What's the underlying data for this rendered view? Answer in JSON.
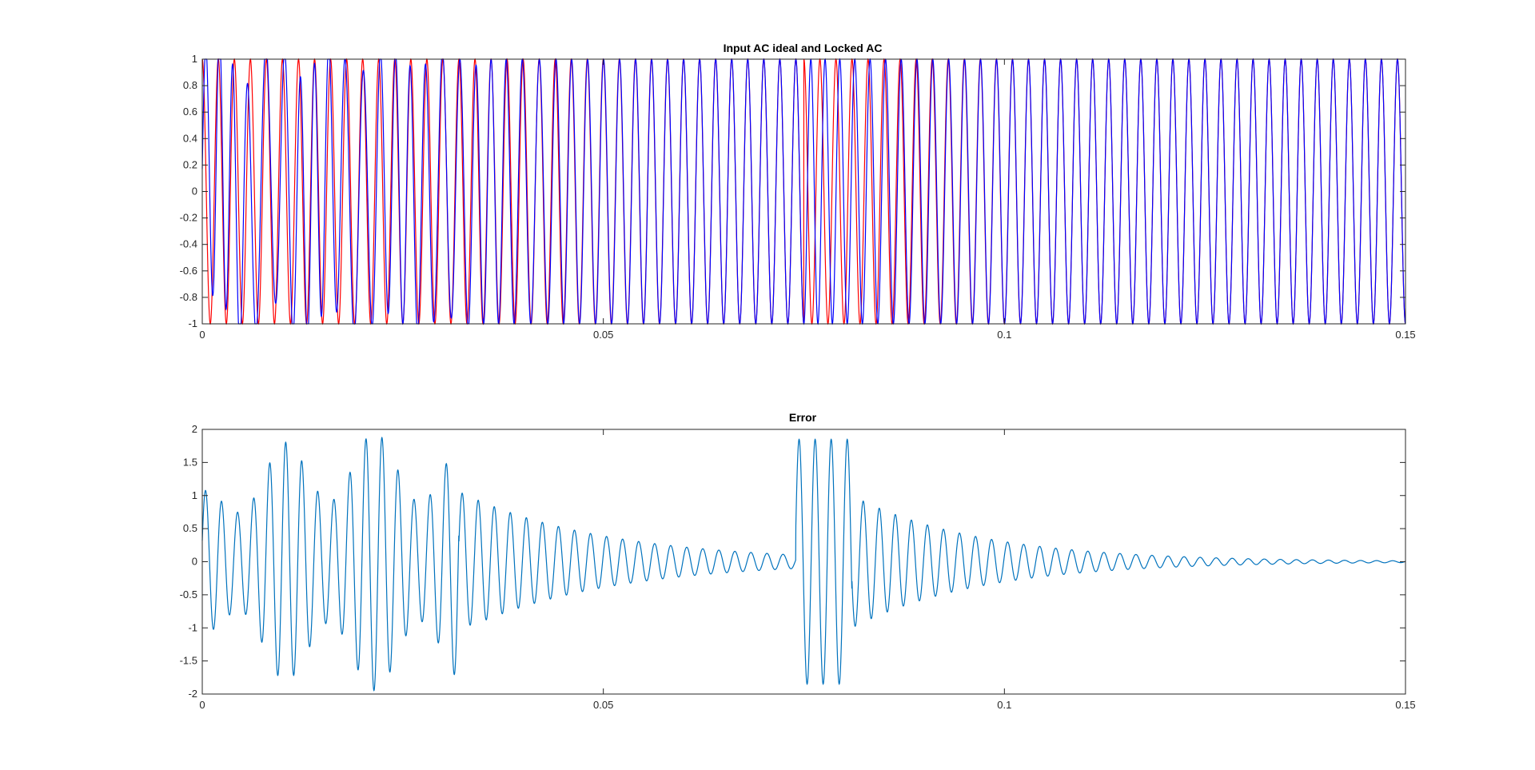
{
  "window": {
    "background": "#ffffff"
  },
  "chart_data": [
    {
      "type": "line",
      "title": "Input AC ideal and Locked AC",
      "xlabel": "",
      "ylabel": "",
      "xlim": [
        0,
        0.15
      ],
      "ylim": [
        -1,
        1
      ],
      "xticks": [
        0,
        0.05,
        0.1,
        0.15
      ],
      "xtick_labels": [
        "0",
        "0.05",
        "0.1",
        "0.15"
      ],
      "yticks": [
        -1,
        -0.8,
        -0.6,
        -0.4,
        -0.2,
        0,
        0.2,
        0.4,
        0.6,
        0.8,
        1
      ],
      "ytick_labels": [
        "-1",
        "-0.8",
        "-0.6",
        "-0.4",
        "-0.2",
        "0",
        "0.2",
        "0.4",
        "0.6",
        "0.8",
        "1"
      ],
      "grid": false,
      "series": [
        {
          "color": "#ff0000",
          "frequency_hz": 500,
          "amplitude": 1,
          "description": "ideal sinusoid, same frequency as locked signal, phase flips near t=0.075"
        },
        {
          "color": "#0000ff",
          "frequency_hz": 500,
          "amplitude": 1,
          "description": "locked output, distorted during acquisition then tracking"
        }
      ]
    },
    {
      "type": "line",
      "title": "Error",
      "xlabel": "",
      "ylabel": "",
      "xlim": [
        0,
        0.15
      ],
      "ylim": [
        -2,
        2
      ],
      "xticks": [
        0,
        0.05,
        0.1,
        0.15
      ],
      "xtick_labels": [
        "0",
        "0.05",
        "0.1",
        "0.15"
      ],
      "yticks": [
        -2,
        -1.5,
        -1,
        -0.5,
        0,
        0.5,
        1,
        1.5,
        2
      ],
      "ytick_labels": [
        "-2",
        "-1.5",
        "-1",
        "-0.5",
        "0",
        "0.5",
        "1",
        "1.5",
        "2"
      ],
      "grid": false,
      "series": [
        {
          "color": "#0072bd",
          "frequency_hz": 500,
          "peak_values": [
            1.05,
            1.6,
            1.92,
            1.87,
            1.92,
            1.85,
            0.85
          ],
          "description": "error oscillation decaying to ~0 with a transient near t=0.075"
        }
      ]
    }
  ]
}
